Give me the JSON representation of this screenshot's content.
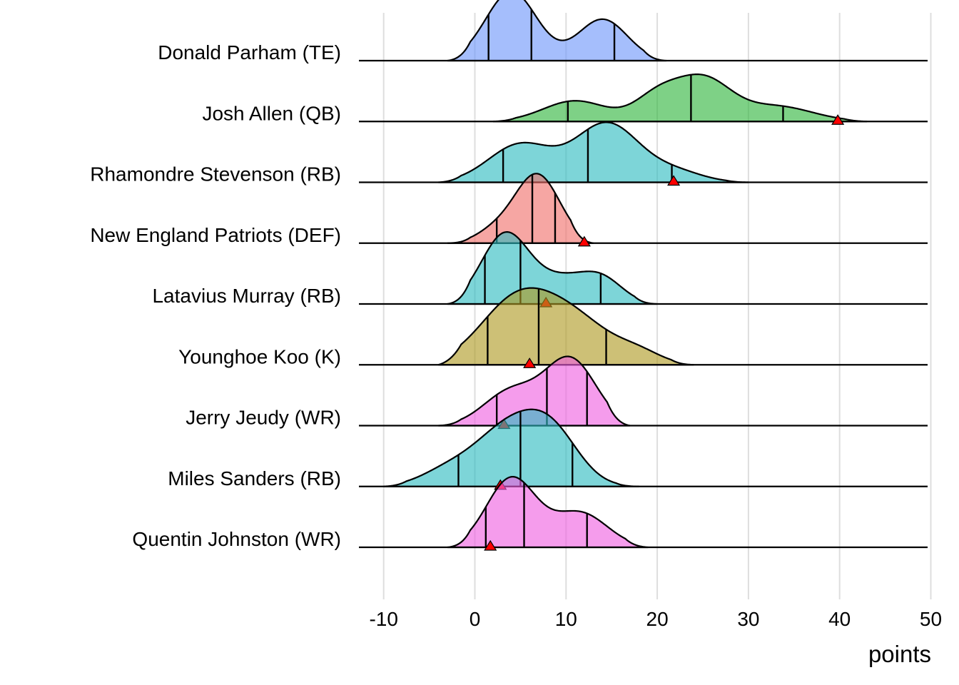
{
  "chart_data": {
    "type": "ridgeline",
    "xlabel": "points",
    "xlim": [
      -13,
      50
    ],
    "xticks": [
      -10,
      0,
      10,
      20,
      30,
      40,
      50
    ],
    "xtick_labels": [
      "-10",
      "0",
      "10",
      "20",
      "30",
      "40",
      "50"
    ],
    "grid": true,
    "marker_color": "#ff0000",
    "series": [
      {
        "name": "Donald Parham (TE)",
        "color": "#6e96fa",
        "support": [
          -3,
          21
        ],
        "peaks": [
          {
            "mu": 4,
            "sd": 2.8,
            "w": 1.0
          },
          {
            "mu": 14,
            "sd": 2.7,
            "w": 0.6
          }
        ],
        "quantiles": [
          1.5,
          6.2,
          15.3
        ],
        "actual": null
      },
      {
        "name": "Josh Allen (QB)",
        "color": "#2fb53b",
        "support": [
          2,
          43
        ],
        "peaks": [
          {
            "mu": 11,
            "sd": 3.5,
            "w": 0.3
          },
          {
            "mu": 20,
            "sd": 2.5,
            "w": 0.35
          },
          {
            "mu": 25,
            "sd": 3.0,
            "w": 0.6
          },
          {
            "mu": 33,
            "sd": 4.0,
            "w": 0.22
          }
        ],
        "quantiles": [
          10.2,
          23.7,
          33.8
        ],
        "actual": 39.8
      },
      {
        "name": "Rhamondre Stevenson (RB)",
        "color": "#2dbbc0",
        "support": [
          -4,
          30
        ],
        "peaks": [
          {
            "mu": 5,
            "sd": 3.5,
            "w": 0.55
          },
          {
            "mu": 14.5,
            "sd": 3.5,
            "w": 0.85
          },
          {
            "mu": 22,
            "sd": 3.0,
            "w": 0.15
          }
        ],
        "quantiles": [
          3.1,
          12.4,
          21.6
        ],
        "actual": 21.8
      },
      {
        "name": "New England Patriots (DEF)",
        "color": "#f0706b",
        "support": [
          -3,
          13
        ],
        "peaks": [
          {
            "mu": 6.8,
            "sd": 2.5,
            "w": 1.0
          },
          {
            "mu": 2,
            "sd": 2.0,
            "w": 0.15
          }
        ],
        "quantiles": [
          2.4,
          6.3,
          8.8
        ],
        "actual": 12.0
      },
      {
        "name": "Latavius Murray (RB)",
        "color": "#2dbbc0",
        "support": [
          -3,
          20
        ],
        "peaks": [
          {
            "mu": 3.3,
            "sd": 2.6,
            "w": 1.0
          },
          {
            "mu": 9.5,
            "sd": 3.0,
            "w": 0.35
          },
          {
            "mu": 14,
            "sd": 2.3,
            "w": 0.32
          }
        ],
        "quantiles": [
          1.1,
          5.0,
          13.8
        ],
        "actual": 7.8
      },
      {
        "name": "Younghoe Koo (K)",
        "color": "#ae9a22",
        "support": [
          -4,
          24
        ],
        "peaks": [
          {
            "mu": 4.5,
            "sd": 4.0,
            "w": 0.9
          },
          {
            "mu": 11,
            "sd": 4.0,
            "w": 0.6
          },
          {
            "mu": 18,
            "sd": 2.5,
            "w": 0.15
          }
        ],
        "quantiles": [
          1.4,
          7.0,
          14.4
        ],
        "actual": 6.0
      },
      {
        "name": "Jerry Jeudy (WR)",
        "color": "#ef5fe0",
        "support": [
          -4,
          17
        ],
        "peaks": [
          {
            "mu": 4,
            "sd": 3.0,
            "w": 0.5
          },
          {
            "mu": 10.5,
            "sd": 2.8,
            "w": 0.95
          }
        ],
        "quantiles": [
          2.4,
          7.9,
          12.3
        ],
        "actual": 3.2
      },
      {
        "name": "Miles Sanders (RB)",
        "color": "#2dbbc0",
        "support": [
          -10,
          18
        ],
        "peaks": [
          {
            "mu": -3,
            "sd": 3.0,
            "w": 0.22
          },
          {
            "mu": 3.5,
            "sd": 3.5,
            "w": 0.8
          },
          {
            "mu": 8.5,
            "sd": 3.0,
            "w": 0.7
          }
        ],
        "quantiles": [
          -1.8,
          5.0,
          10.7
        ],
        "actual": 2.8
      },
      {
        "name": "Quentin Johnston (WR)",
        "color": "#ef5fe0",
        "support": [
          -3,
          19
        ],
        "peaks": [
          {
            "mu": 4,
            "sd": 2.7,
            "w": 1.0
          },
          {
            "mu": 11.5,
            "sd": 3.0,
            "w": 0.5
          }
        ],
        "quantiles": [
          1.2,
          5.4,
          12.3
        ],
        "actual": 1.7
      }
    ]
  }
}
